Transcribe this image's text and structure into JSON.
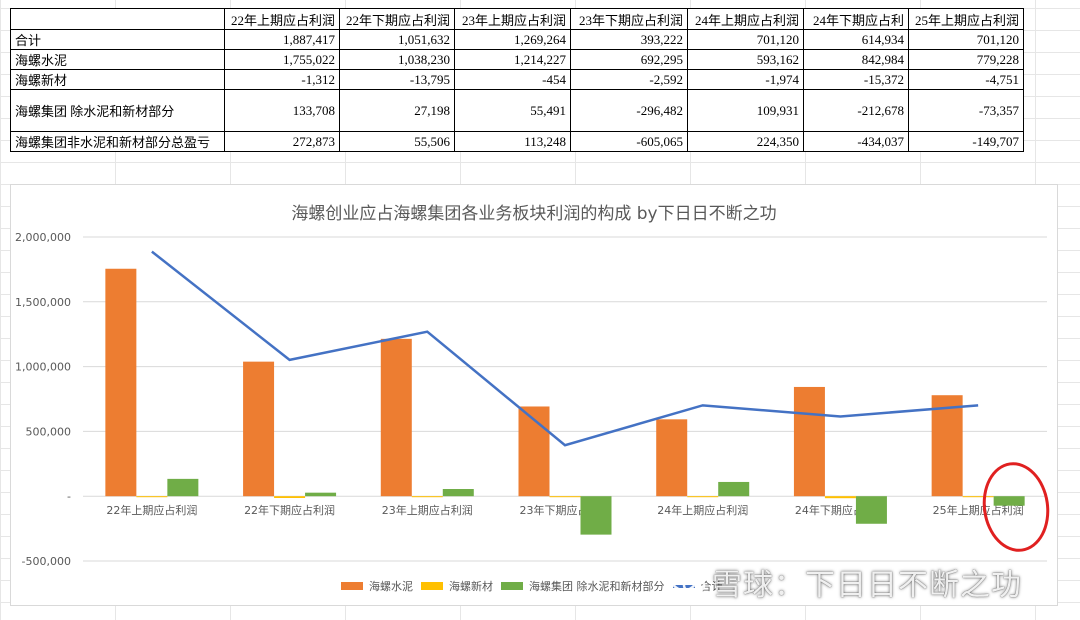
{
  "table": {
    "headers": [
      "",
      "22年上期应占利润",
      "22年下期应占利润",
      "23年上期应占利润",
      "23年下期应占利润",
      "24年上期应占利润",
      "24年下期应占利",
      "25年上期应占利润"
    ],
    "rows": [
      {
        "label": "合计",
        "values": [
          "1,887,417",
          "1,051,632",
          "1,269,264",
          "393,222",
          "701,120",
          "614,934",
          "701,120"
        ]
      },
      {
        "label": "海螺水泥",
        "values": [
          "1,755,022",
          "1,038,230",
          "1,214,227",
          "692,295",
          "593,162",
          "842,984",
          "779,228"
        ]
      },
      {
        "label": "海螺新材",
        "values": [
          "-1,312",
          "-13,795",
          "-454",
          "-2,592",
          "-1,974",
          "-15,372",
          "-4,751"
        ]
      },
      {
        "label": "海螺集团 除水泥和新材部分",
        "values": [
          "133,708",
          "27,198",
          "55,491",
          "-296,482",
          "109,931",
          "-212,678",
          "-73,357"
        ]
      },
      {
        "label": "海螺集团非水泥和新材部分总盈亏",
        "values": [
          "272,873",
          "55,506",
          "113,248",
          "-605,065",
          "224,350",
          "-434,037",
          "-149,707"
        ]
      }
    ]
  },
  "chart_data": {
    "type": "bar",
    "title": "海螺创业应占海螺集团各业务板块利润的构成 by下日日不断之功",
    "categories": [
      "22年上期应占利润",
      "22年下期应占利润",
      "23年上期应占利润",
      "23年下期应占利润",
      "24年上期应占利润",
      "24年下期应占利润",
      "25年上期应占利润"
    ],
    "ylim": [
      -500000,
      2000000
    ],
    "yticks": [
      2000000,
      1500000,
      1000000,
      500000,
      0,
      -500000
    ],
    "ytick_labels": [
      "2,000,000",
      "1,500,000",
      "1,000,000",
      "500,000",
      "-",
      "-500,000"
    ],
    "grid": true,
    "legend_position": "bottom",
    "series": [
      {
        "name": "海螺水泥",
        "kind": "bar",
        "color": "#ED7D31",
        "values": [
          1755022,
          1038230,
          1214227,
          692295,
          593162,
          842984,
          779228
        ]
      },
      {
        "name": "海螺新材",
        "kind": "bar",
        "color": "#FFC000",
        "values": [
          -1312,
          -13795,
          -454,
          -2592,
          -1974,
          -15372,
          -4751
        ]
      },
      {
        "name": "海螺集团 除水泥和新材部分",
        "kind": "bar",
        "color": "#70AD47",
        "values": [
          133708,
          27198,
          55491,
          -296482,
          109931,
          -212678,
          -73357
        ]
      },
      {
        "name": "合计",
        "kind": "line",
        "color": "#4472C4",
        "values": [
          1887417,
          1051632,
          1269264,
          393222,
          701120,
          614934,
          701120
        ]
      }
    ]
  },
  "watermark": {
    "text": "雪球：下日日不断之功",
    "icon": "wechat-icon"
  }
}
